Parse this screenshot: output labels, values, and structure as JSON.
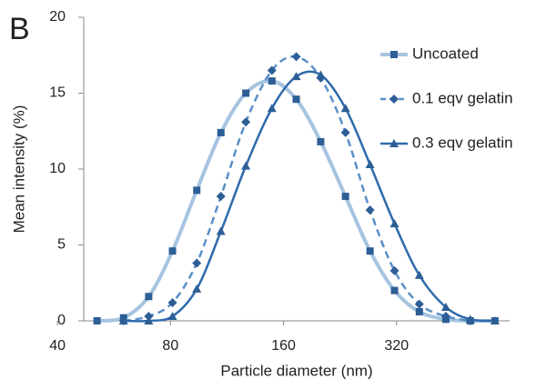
{
  "chart_data": {
    "type": "line",
    "panel_label": "B",
    "x_label": "Particle diameter (nm)",
    "y_label": "Mean intensity (%)",
    "x_scale": "log",
    "xlim": [
      47,
      640
    ],
    "xticks": [
      40,
      80,
      160,
      320
    ],
    "ylim": [
      0,
      20
    ],
    "yticks": [
      0,
      5,
      10,
      15,
      20
    ],
    "grid": false,
    "legend_position": "upper-right",
    "x": [
      51,
      60,
      70,
      81,
      94,
      109,
      127,
      149,
      173,
      201,
      234,
      272,
      316,
      368,
      433,
      503,
      585
    ],
    "series": [
      {
        "name": "Uncoated",
        "color": "#a6c4e0",
        "marker": "square",
        "dash": false,
        "values": [
          0,
          0.2,
          1.6,
          4.6,
          8.6,
          12.4,
          15.0,
          15.8,
          14.6,
          11.8,
          8.2,
          4.6,
          2.0,
          0.6,
          0.1,
          0,
          0
        ]
      },
      {
        "name": "0.1 eqv gelatin",
        "color": "#5a8fc8",
        "marker": "diamond",
        "dash": true,
        "values": [
          null,
          0,
          0.3,
          1.2,
          3.8,
          8.2,
          13.1,
          16.5,
          17.4,
          16.0,
          12.4,
          7.3,
          3.3,
          1.1,
          0.3,
          0,
          null
        ]
      },
      {
        "name": "0.3 eqv gelatin",
        "color": "#2f6aab",
        "marker": "triangle",
        "dash": false,
        "values": [
          null,
          0,
          0,
          0.3,
          2.1,
          5.9,
          10.2,
          14.0,
          16.1,
          16.2,
          14.0,
          10.3,
          6.4,
          3.0,
          0.9,
          0.1,
          0
        ]
      }
    ]
  }
}
